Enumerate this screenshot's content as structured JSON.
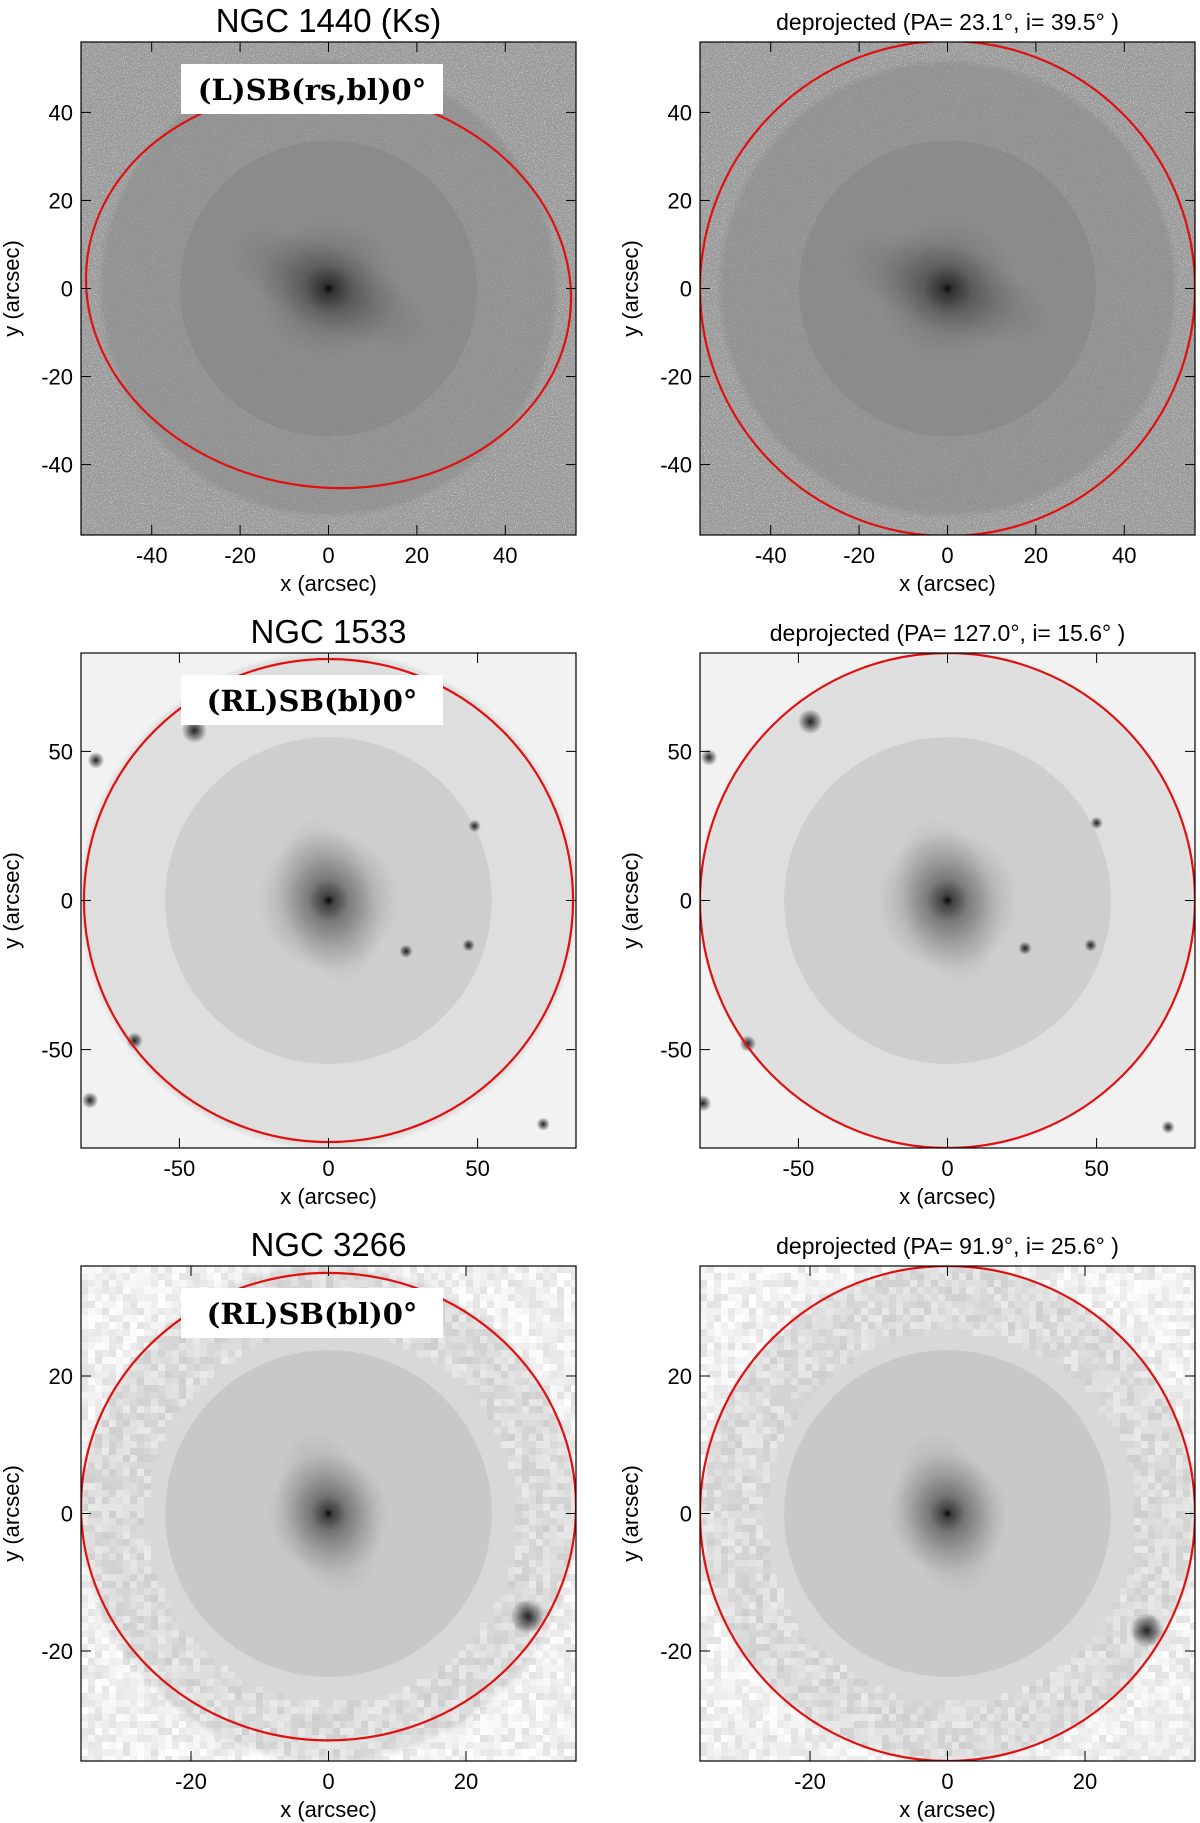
{
  "panels": [
    {
      "id": "ngc1440-observed",
      "title": "NGC 1440   (Ks)",
      "title_style": "big",
      "morphology": "(L)SB(rs,bl)0°",
      "xlabel": "x (arcsec)",
      "ylabel": "y (arcsec)",
      "range": [
        -56,
        56
      ],
      "ticks": [
        -40,
        -20,
        0,
        20,
        40
      ],
      "image_style": "noisy",
      "ellipse": {
        "cx": 0,
        "cy": 0,
        "a": 55,
        "b": 45,
        "angle_deg": 97
      },
      "stars": []
    },
    {
      "id": "ngc1440-deprojected",
      "title": "deprojected  (PA= 23.1°, i= 39.5° )",
      "title_style": "small",
      "xlabel": "x (arcsec)",
      "ylabel": "y (arcsec)",
      "range": [
        -56,
        56
      ],
      "ticks": [
        -40,
        -20,
        0,
        20,
        40
      ],
      "image_style": "noisy",
      "ellipse": {
        "cx": 0,
        "cy": 0,
        "a": 56,
        "b": 56,
        "angle_deg": 0
      },
      "stars": []
    },
    {
      "id": "ngc1533-observed",
      "title": "NGC 1533",
      "title_style": "big",
      "morphology": "(RL)SB(bl)0°",
      "xlabel": "x (arcsec)",
      "ylabel": "y (arcsec)",
      "range": [
        -83,
        83
      ],
      "ticks": [
        -50,
        0,
        50
      ],
      "image_style": "smooth",
      "ellipse": {
        "cx": 0,
        "cy": 0,
        "a": 82,
        "b": 81,
        "angle_deg": 0
      },
      "stars": [
        {
          "x": -45,
          "y": 57,
          "r": 3
        },
        {
          "x": -78,
          "y": 47,
          "r": 2
        },
        {
          "x": -65,
          "y": -47,
          "r": 2
        },
        {
          "x": 26,
          "y": -17,
          "r": 1.6
        },
        {
          "x": 47,
          "y": -15,
          "r": 1.5
        },
        {
          "x": -80,
          "y": -67,
          "r": 2
        },
        {
          "x": 72,
          "y": -75,
          "r": 1.6
        },
        {
          "x": 49,
          "y": 25,
          "r": 1.5
        }
      ]
    },
    {
      "id": "ngc1533-deprojected",
      "title": "deprojected  (PA= 127.0°, i= 15.6° )",
      "title_style": "small",
      "xlabel": "x (arcsec)",
      "ylabel": "y (arcsec)",
      "range": [
        -83,
        83
      ],
      "ticks": [
        -50,
        0,
        50
      ],
      "image_style": "smooth",
      "ellipse": {
        "cx": 0,
        "cy": 0,
        "a": 83,
        "b": 83,
        "angle_deg": 0
      },
      "stars": [
        {
          "x": -46,
          "y": 60,
          "r": 3
        },
        {
          "x": -80,
          "y": 48,
          "r": 2
        },
        {
          "x": -67,
          "y": -48,
          "r": 2
        },
        {
          "x": 26,
          "y": -16,
          "r": 1.6
        },
        {
          "x": 48,
          "y": -15,
          "r": 1.5
        },
        {
          "x": -82,
          "y": -68,
          "r": 2
        },
        {
          "x": 74,
          "y": -76,
          "r": 1.6
        },
        {
          "x": 50,
          "y": 26,
          "r": 1.5
        }
      ]
    },
    {
      "id": "ngc3266-observed",
      "title": "NGC 3266",
      "title_style": "big",
      "morphology": "(RL)SB(bl)0°",
      "xlabel": "x (arcsec)",
      "ylabel": "y (arcsec)",
      "range": [
        -36,
        36
      ],
      "ticks": [
        -20,
        0,
        20
      ],
      "image_style": "blocky",
      "ellipse": {
        "cx": 0,
        "cy": 1,
        "a": 36,
        "b": 34,
        "angle_deg": 0
      },
      "stars": [
        {
          "x": 29,
          "y": -15,
          "r": 1.8
        }
      ]
    },
    {
      "id": "ngc3266-deprojected",
      "title": "deprojected  (PA= 91.9°, i= 25.6° )",
      "title_style": "small",
      "xlabel": "x (arcsec)",
      "ylabel": "y (arcsec)",
      "range": [
        -36,
        36
      ],
      "ticks": [
        -20,
        0,
        20
      ],
      "image_style": "blocky",
      "ellipse": {
        "cx": 0,
        "cy": 0,
        "a": 36,
        "b": 36,
        "angle_deg": 0
      },
      "stars": [
        {
          "x": 29,
          "y": -17,
          "r": 1.8
        }
      ]
    }
  ],
  "colors": {
    "ellipse": "#e01010",
    "frame": "#000000",
    "background": "#ffffff"
  }
}
